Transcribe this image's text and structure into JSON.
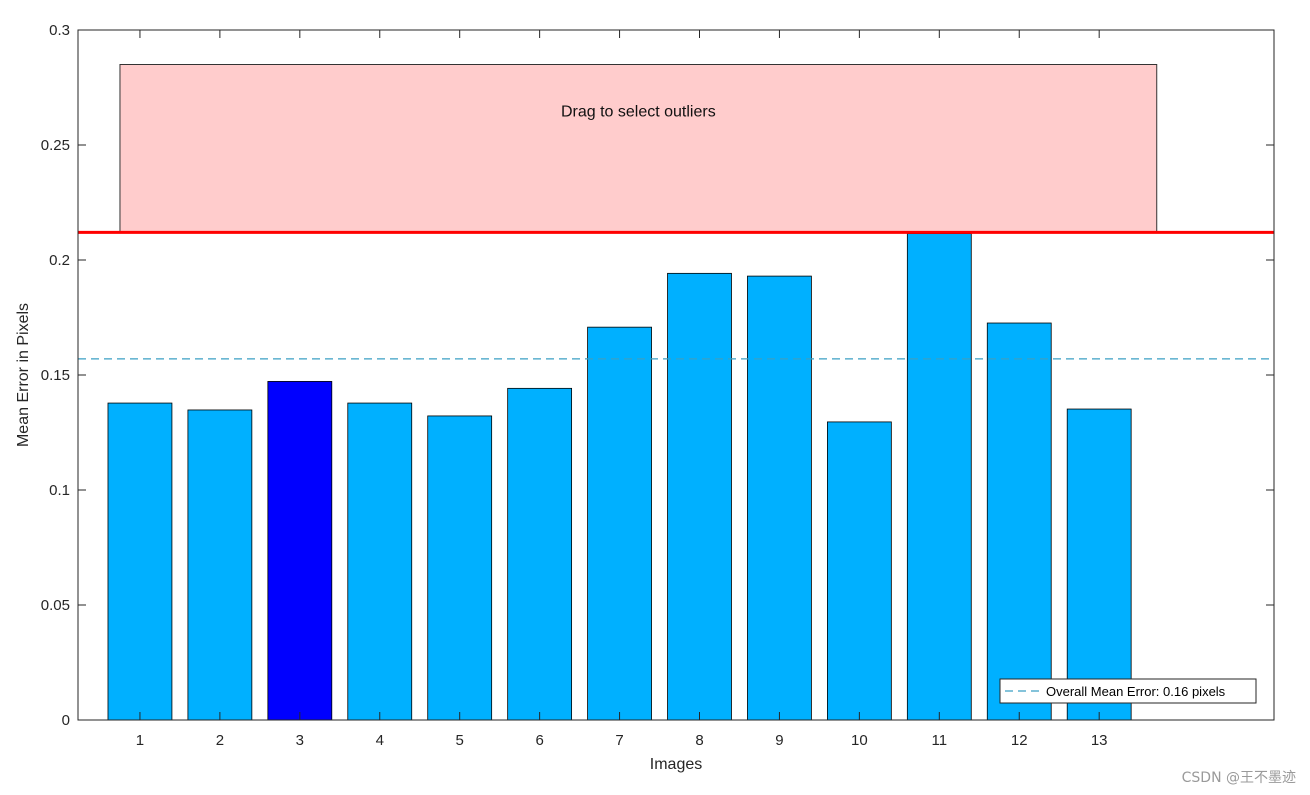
{
  "chart_data": {
    "type": "bar",
    "categories": [
      "1",
      "2",
      "3",
      "4",
      "5",
      "6",
      "7",
      "8",
      "9",
      "10",
      "11",
      "12",
      "13"
    ],
    "values": [
      0.1378,
      0.1348,
      0.1472,
      0.1378,
      0.1322,
      0.1442,
      0.1708,
      0.1942,
      0.193,
      0.1296,
      0.2115,
      0.1726,
      0.1352
    ],
    "highlighted_index": 2,
    "xlabel": "Images",
    "ylabel": "Mean Error in Pixels",
    "ylim": [
      0,
      0.3
    ],
    "yticks": [
      0,
      0.05,
      0.1,
      0.15,
      0.2,
      0.25,
      0.3
    ],
    "ytick_labels": [
      "0",
      "0.05",
      "0.1",
      "0.15",
      "0.2",
      "0.25",
      "0.3"
    ],
    "overall_mean": 0.157,
    "outlier_threshold": 0.212,
    "outlier_region": {
      "x_from": 0.75,
      "x_to": 13.72,
      "y_from": 0.212,
      "y_to": 0.285,
      "label": "Drag to select outliers"
    },
    "legend": {
      "entry": "Overall Mean Error: 0.16 pixels",
      "placement": "bottom-right"
    },
    "grid": false,
    "colors": {
      "bar": "#00B0FF",
      "bar_selected": "#0000FF",
      "threshold_line": "#FF0000",
      "mean_line": "#3A9FC4",
      "outlier_fill": "#FFCCCC"
    }
  },
  "watermark": "CSDN @王不墨迹"
}
